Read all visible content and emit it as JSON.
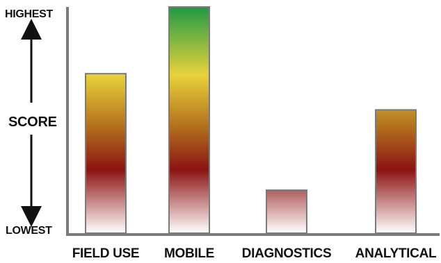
{
  "chart_data": {
    "type": "bar",
    "title": "",
    "xlabel": "",
    "ylabel": "SCORE",
    "y_axis_top_label": "HIGHEST",
    "y_axis_bottom_label": "LOWEST",
    "categories": [
      "FIELD USE",
      "MOBILE",
      "DIAGNOSTICS",
      "ANALYTICAL"
    ],
    "values": [
      0.705,
      1.0,
      0.19,
      0.545
    ],
    "ylim": [
      0,
      1
    ],
    "grid": false,
    "legend": "none",
    "gradient_colors": {
      "top": "#1f9a45",
      "upper": "#e8d23c",
      "middle": "#b5741e",
      "lower": "#8c1313",
      "bottom": "#ffffff"
    },
    "axis_color": "#7a7a7a",
    "bar_border_color": "#7a7a7a"
  }
}
